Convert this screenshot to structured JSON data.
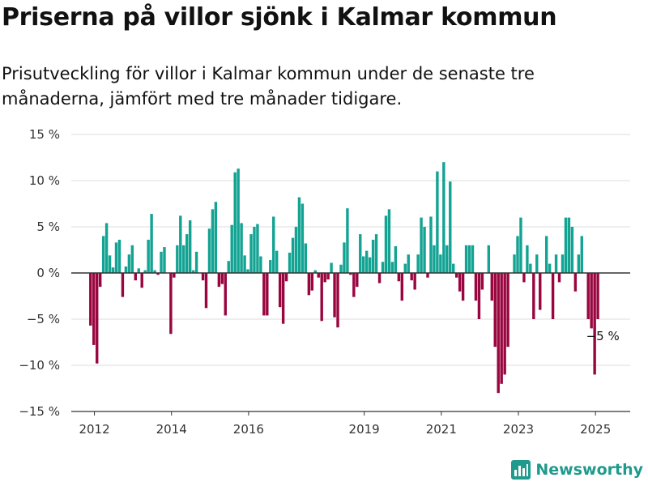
{
  "title": "Priserna på villor sjönk i Kalmar kommun",
  "subtitle": "Prisutveckling för villor i Kalmar kommun under de senaste tre månaderna, jämfört med tre månader tidigare.",
  "brand": "Newsworthy",
  "colors": {
    "positive": "#13a393",
    "negative": "#99063f",
    "zero_line": "#333333",
    "grid": "#dddddd",
    "brand": "#1f9a8c"
  },
  "chart_data": {
    "type": "bar",
    "x_start": 2011.9,
    "x_step": 0.0833,
    "xlim": [
      2011.4,
      2025.9
    ],
    "ylim": [
      -15,
      15
    ],
    "ytick_values": [
      15,
      10,
      5,
      0,
      -5,
      -10,
      -15
    ],
    "ytick_labels": [
      "15 %",
      "10 %",
      "5 %",
      "0 %",
      "−5 %",
      "−10 %",
      "−15 %"
    ],
    "xtick_values": [
      2012,
      2014,
      2016,
      2019,
      2021,
      2023,
      2025
    ],
    "xtick_labels": [
      "2012",
      "2014",
      "2016",
      "2019",
      "2021",
      "2023",
      "2025"
    ],
    "grid": true,
    "annotation": {
      "text": "−5 %",
      "x": 2025.0,
      "y": -5
    },
    "values": [
      -5.7,
      -7.8,
      -9.8,
      -1.5,
      4.0,
      5.4,
      1.9,
      0.6,
      3.3,
      3.6,
      -2.6,
      0.7,
      2.0,
      3.0,
      -0.8,
      0.5,
      -1.6,
      0.3,
      3.6,
      6.4,
      0.3,
      -0.2,
      2.3,
      2.8,
      0.0,
      -6.6,
      -0.5,
      3.0,
      6.2,
      3.0,
      4.2,
      5.7,
      0.3,
      2.3,
      0.0,
      -0.8,
      -3.8,
      4.8,
      6.9,
      7.7,
      -1.5,
      -1.2,
      -4.6,
      1.3,
      5.2,
      10.9,
      11.3,
      5.4,
      1.9,
      0.4,
      4.2,
      5.0,
      5.3,
      1.8,
      -4.6,
      -4.6,
      1.4,
      6.1,
      2.4,
      -3.7,
      -5.5,
      -0.9,
      2.2,
      3.8,
      5.0,
      8.2,
      7.5,
      3.2,
      -2.4,
      -1.9,
      0.3,
      -0.5,
      -5.2,
      -1.0,
      -0.7,
      1.1,
      -4.8,
      -5.9,
      0.9,
      3.3,
      7.0,
      -0.2,
      -2.6,
      -1.5,
      4.2,
      1.8,
      2.4,
      1.7,
      3.6,
      4.2,
      -1.1,
      1.2,
      6.2,
      6.9,
      1.2,
      2.9,
      -0.9,
      -3.0,
      1.0,
      2.0,
      -0.8,
      -1.8,
      2.0,
      6.0,
      5.0,
      -0.5,
      6.1,
      3.0,
      11.0,
      2.0,
      12.0,
      3.0,
      9.9,
      1.0,
      -0.5,
      -2.0,
      -3.0,
      3.0,
      3.0,
      3.0,
      -3.0,
      -5.0,
      -1.8,
      0.0,
      3.0,
      -3.0,
      -8.0,
      -13.0,
      -12.0,
      -11.0,
      -8.0,
      0.0,
      2.0,
      4.0,
      6.0,
      -1.0,
      3.0,
      1.0,
      -5.0,
      2.0,
      -4.0,
      0.0,
      4.0,
      1.0,
      -5.0,
      2.0,
      -1.0,
      2.0,
      6.0,
      6.0,
      5.0,
      -2.0,
      2.0,
      4.0,
      0.0,
      -5.0,
      -6.0,
      -11.0,
      -5.0
    ]
  }
}
